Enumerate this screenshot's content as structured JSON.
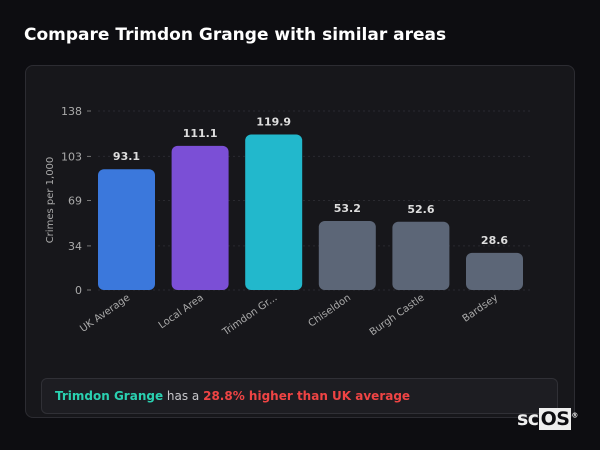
{
  "title": "Compare Trimdon Grange with similar areas",
  "chart_data": {
    "type": "bar",
    "categories": [
      "UK Average",
      "Local Area",
      "Trimdon Gr...",
      "Chiseldon",
      "Burgh Castle",
      "Bardsey"
    ],
    "values": [
      93.1,
      111.1,
      119.9,
      53.2,
      52.6,
      28.6
    ],
    "value_labels": [
      "93.1",
      "111.1",
      "119.9",
      "53.2",
      "52.6",
      "28.6"
    ],
    "colors": [
      "#3b78dc",
      "#7b4fd6",
      "#22b8cc",
      "#5c6677",
      "#5c6677",
      "#5c6677"
    ],
    "ylabel": "Crimes per 1,000",
    "xlabel": "",
    "yticks": [
      0,
      34,
      69,
      103,
      138
    ],
    "ylim": [
      0,
      138
    ],
    "grid": true
  },
  "footer": {
    "area_name": "Trimdon Grange",
    "text_mid": " has a ",
    "highlight": "28.8% higher than UK average"
  },
  "logo": {
    "text_a": "sc",
    "text_b": "OS",
    "mark": "®"
  }
}
